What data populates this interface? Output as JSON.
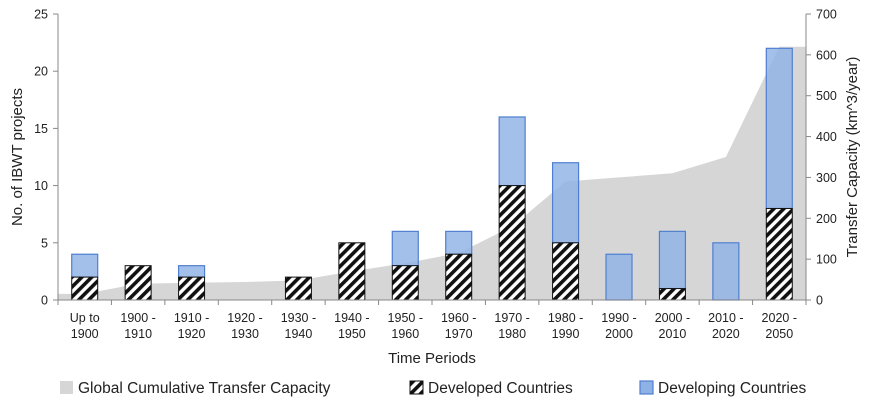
{
  "chart_data": {
    "type": "bar",
    "categories": [
      [
        "Up to",
        "1900"
      ],
      [
        "1900 -",
        "1910"
      ],
      [
        "1910 -",
        "1920"
      ],
      [
        "1920 -",
        "1930"
      ],
      [
        "1930 -",
        "1940"
      ],
      [
        "1940 -",
        "1950"
      ],
      [
        "1950 -",
        "1960"
      ],
      [
        "1960 -",
        "1970"
      ],
      [
        "1970 -",
        "1980"
      ],
      [
        "1980 -",
        "1990"
      ],
      [
        "1990 -",
        "2000"
      ],
      [
        "2000 -",
        "2010"
      ],
      [
        "2010 -",
        "2020"
      ],
      [
        "2020 -",
        "2050"
      ]
    ],
    "series": [
      {
        "name": "Developed Countries",
        "axis": "left",
        "values": [
          2,
          3,
          2,
          0,
          2,
          5,
          3,
          4,
          10,
          5,
          0,
          1,
          0,
          8
        ]
      },
      {
        "name": "Developing Countries",
        "axis": "left",
        "values": [
          2,
          0,
          1,
          0,
          0,
          0,
          3,
          2,
          6,
          7,
          4,
          5,
          5,
          14
        ]
      },
      {
        "name": "Global Cumulative Transfer Capacity",
        "axis": "right",
        "type": "area",
        "values": [
          15,
          40,
          42,
          44,
          48,
          70,
          90,
          115,
          180,
          290,
          300,
          310,
          350,
          620
        ]
      }
    ],
    "xlabel": "Time Periods",
    "ylabel": "No. of IBWT projects",
    "y2label": "Transfer Capacity (km^3/year)",
    "ylim": [
      0,
      25
    ],
    "y2lim": [
      0,
      700
    ],
    "yticks": [
      0,
      5,
      10,
      15,
      20,
      25
    ],
    "y2ticks": [
      0,
      100,
      200,
      300,
      400,
      500,
      600,
      700
    ],
    "legend_position": "bottom",
    "colors": {
      "area": "#d6d6d6",
      "developing_fill": "#8fb2e6",
      "developing_edge": "#4f7fd0",
      "developed_stripe": "#111111",
      "axis": "#888888"
    }
  }
}
